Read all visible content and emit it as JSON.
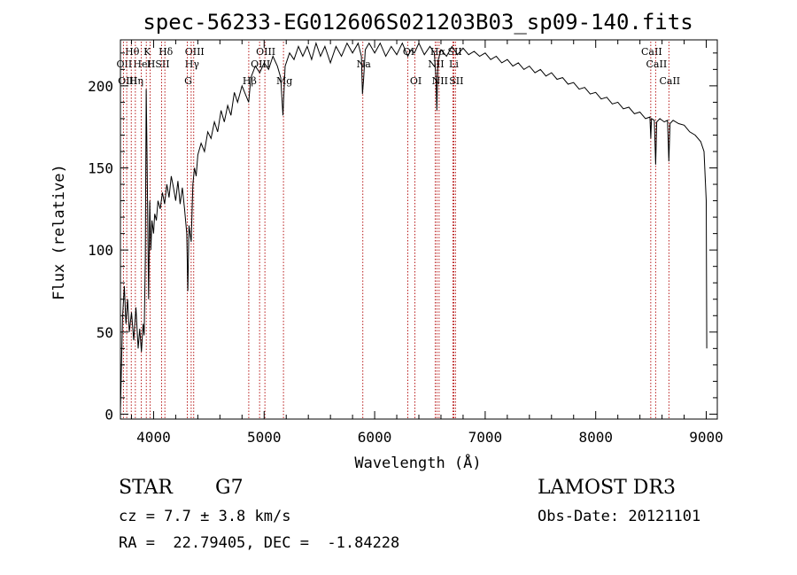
{
  "chart_data": {
    "type": "line",
    "title": "spec-56233-EG012606S021203B03_sp09-140.fits",
    "xlabel": "Wavelength (Å)",
    "ylabel": "Flux (relative)",
    "xlim": [
      3700,
      9100
    ],
    "ylim": [
      -3,
      228
    ],
    "x_ticks": [
      4000,
      5000,
      6000,
      7000,
      8000,
      9000
    ],
    "y_ticks": [
      0,
      50,
      100,
      150,
      200
    ],
    "grid": false,
    "series": [
      {
        "name": "spectrum",
        "points": [
          [
            3700,
            2
          ],
          [
            3710,
            30
          ],
          [
            3720,
            60
          ],
          [
            3735,
            78
          ],
          [
            3750,
            55
          ],
          [
            3765,
            70
          ],
          [
            3780,
            50
          ],
          [
            3800,
            62
          ],
          [
            3820,
            45
          ],
          [
            3840,
            65
          ],
          [
            3860,
            40
          ],
          [
            3875,
            52
          ],
          [
            3890,
            38
          ],
          [
            3905,
            55
          ],
          [
            3915,
            48
          ],
          [
            3925,
            95
          ],
          [
            3933,
            198
          ],
          [
            3940,
            160
          ],
          [
            3955,
            70
          ],
          [
            3965,
            130
          ],
          [
            3975,
            100
          ],
          [
            3985,
            118
          ],
          [
            4000,
            110
          ],
          [
            4010,
            122
          ],
          [
            4025,
            118
          ],
          [
            4040,
            130
          ],
          [
            4060,
            125
          ],
          [
            4080,
            135
          ],
          [
            4100,
            128
          ],
          [
            4120,
            140
          ],
          [
            4140,
            132
          ],
          [
            4160,
            145
          ],
          [
            4180,
            138
          ],
          [
            4200,
            130
          ],
          [
            4220,
            142
          ],
          [
            4240,
            128
          ],
          [
            4260,
            138
          ],
          [
            4280,
            125
          ],
          [
            4300,
            110
          ],
          [
            4310,
            75
          ],
          [
            4320,
            115
          ],
          [
            4340,
            105
          ],
          [
            4355,
            140
          ],
          [
            4370,
            150
          ],
          [
            4385,
            145
          ],
          [
            4400,
            158
          ],
          [
            4430,
            165
          ],
          [
            4460,
            160
          ],
          [
            4490,
            172
          ],
          [
            4520,
            168
          ],
          [
            4550,
            178
          ],
          [
            4580,
            172
          ],
          [
            4610,
            185
          ],
          [
            4640,
            178
          ],
          [
            4670,
            188
          ],
          [
            4700,
            182
          ],
          [
            4730,
            196
          ],
          [
            4760,
            190
          ],
          [
            4800,
            200
          ],
          [
            4830,
            195
          ],
          [
            4860,
            190
          ],
          [
            4880,
            205
          ],
          [
            4920,
            212
          ],
          [
            4960,
            208
          ],
          [
            5000,
            214
          ],
          [
            5040,
            210
          ],
          [
            5080,
            218
          ],
          [
            5120,
            212
          ],
          [
            5150,
            205
          ],
          [
            5170,
            182
          ],
          [
            5190,
            212
          ],
          [
            5230,
            220
          ],
          [
            5270,
            216
          ],
          [
            5310,
            224
          ],
          [
            5350,
            218
          ],
          [
            5390,
            224
          ],
          [
            5430,
            216
          ],
          [
            5470,
            226
          ],
          [
            5510,
            218
          ],
          [
            5550,
            224
          ],
          [
            5600,
            214
          ],
          [
            5650,
            224
          ],
          [
            5700,
            218
          ],
          [
            5750,
            226
          ],
          [
            5800,
            220
          ],
          [
            5850,
            226
          ],
          [
            5880,
            218
          ],
          [
            5890,
            195
          ],
          [
            5900,
            204
          ],
          [
            5915,
            222
          ],
          [
            5950,
            226
          ],
          [
            6000,
            220
          ],
          [
            6050,
            226
          ],
          [
            6100,
            218
          ],
          [
            6150,
            224
          ],
          [
            6200,
            219
          ],
          [
            6250,
            226
          ],
          [
            6300,
            218
          ],
          [
            6330,
            222
          ],
          [
            6360,
            220
          ],
          [
            6400,
            226
          ],
          [
            6450,
            219
          ],
          [
            6500,
            224
          ],
          [
            6540,
            220
          ],
          [
            6555,
            205
          ],
          [
            6563,
            185
          ],
          [
            6572,
            215
          ],
          [
            6600,
            222
          ],
          [
            6650,
            218
          ],
          [
            6700,
            224
          ],
          [
            6750,
            219
          ],
          [
            6800,
            223
          ],
          [
            6850,
            219
          ],
          [
            6900,
            221
          ],
          [
            6950,
            218
          ],
          [
            7000,
            220
          ],
          [
            7050,
            216
          ],
          [
            7100,
            218
          ],
          [
            7150,
            214
          ],
          [
            7200,
            216
          ],
          [
            7250,
            212
          ],
          [
            7300,
            214
          ],
          [
            7350,
            210
          ],
          [
            7400,
            212
          ],
          [
            7450,
            208
          ],
          [
            7500,
            210
          ],
          [
            7550,
            206
          ],
          [
            7600,
            208
          ],
          [
            7650,
            204
          ],
          [
            7700,
            205
          ],
          [
            7750,
            201
          ],
          [
            7800,
            202
          ],
          [
            7850,
            198
          ],
          [
            7900,
            199
          ],
          [
            7950,
            195
          ],
          [
            8000,
            196
          ],
          [
            8050,
            192
          ],
          [
            8100,
            193
          ],
          [
            8150,
            189
          ],
          [
            8200,
            190
          ],
          [
            8250,
            186
          ],
          [
            8300,
            187
          ],
          [
            8350,
            183
          ],
          [
            8400,
            184
          ],
          [
            8450,
            180
          ],
          [
            8490,
            181
          ],
          [
            8498,
            168
          ],
          [
            8505,
            180
          ],
          [
            8530,
            179
          ],
          [
            8542,
            152
          ],
          [
            8552,
            178
          ],
          [
            8580,
            180
          ],
          [
            8620,
            178
          ],
          [
            8650,
            179
          ],
          [
            8662,
            154
          ],
          [
            8672,
            177
          ],
          [
            8700,
            179
          ],
          [
            8750,
            177
          ],
          [
            8800,
            176
          ],
          [
            8850,
            172
          ],
          [
            8900,
            170
          ],
          [
            8950,
            166
          ],
          [
            8980,
            160
          ],
          [
            9000,
            130
          ],
          [
            9005,
            40
          ]
        ]
      }
    ],
    "line_markers": [
      {
        "name": "Hθ",
        "x": 3798
      },
      {
        "name": "OII",
        "x": 3727
      },
      {
        "name": "OIII",
        "x": 3757
      },
      {
        "name": "K",
        "x": 3934
      },
      {
        "name": "HeI",
        "x": 3889
      },
      {
        "name": "Hη",
        "x": 3835
      },
      {
        "name": "H",
        "x": 3969
      },
      {
        "name": "SII",
        "x": 4072
      },
      {
        "name": "Hδ",
        "x": 4102
      },
      {
        "name": "OIII",
        "x": 4363
      },
      {
        "name": "Hγ",
        "x": 4340
      },
      {
        "name": "G",
        "x": 4305
      },
      {
        "name": "OIII",
        "x": 5007
      },
      {
        "name": "OIII",
        "x": 4959
      },
      {
        "name": "Mg",
        "x": 5175
      },
      {
        "name": "Hβ",
        "x": 4861
      },
      {
        "name": "Na",
        "x": 5893
      },
      {
        "name": "OI",
        "x": 6300
      },
      {
        "name": "OI",
        "x": 6364
      },
      {
        "name": "Hα",
        "x": 6563
      },
      {
        "name": "NII",
        "x": 6548
      },
      {
        "name": "NII",
        "x": 6583
      },
      {
        "name": "SII",
        "x": 6717
      },
      {
        "name": "Li",
        "x": 6708
      },
      {
        "name": "SII",
        "x": 6731
      },
      {
        "name": "CaII",
        "x": 8498
      },
      {
        "name": "CaII",
        "x": 8542
      },
      {
        "name": "CaII",
        "x": 8662
      }
    ]
  },
  "info": {
    "object_class": "STAR",
    "subclass": "G7",
    "survey": "LAMOST DR3",
    "cz": "cz = 7.7 ± 3.8 km/s",
    "obs_date": "Obs-Date: 20121101",
    "coords": "RA =  22.79405, DEC =  -1.84228"
  }
}
